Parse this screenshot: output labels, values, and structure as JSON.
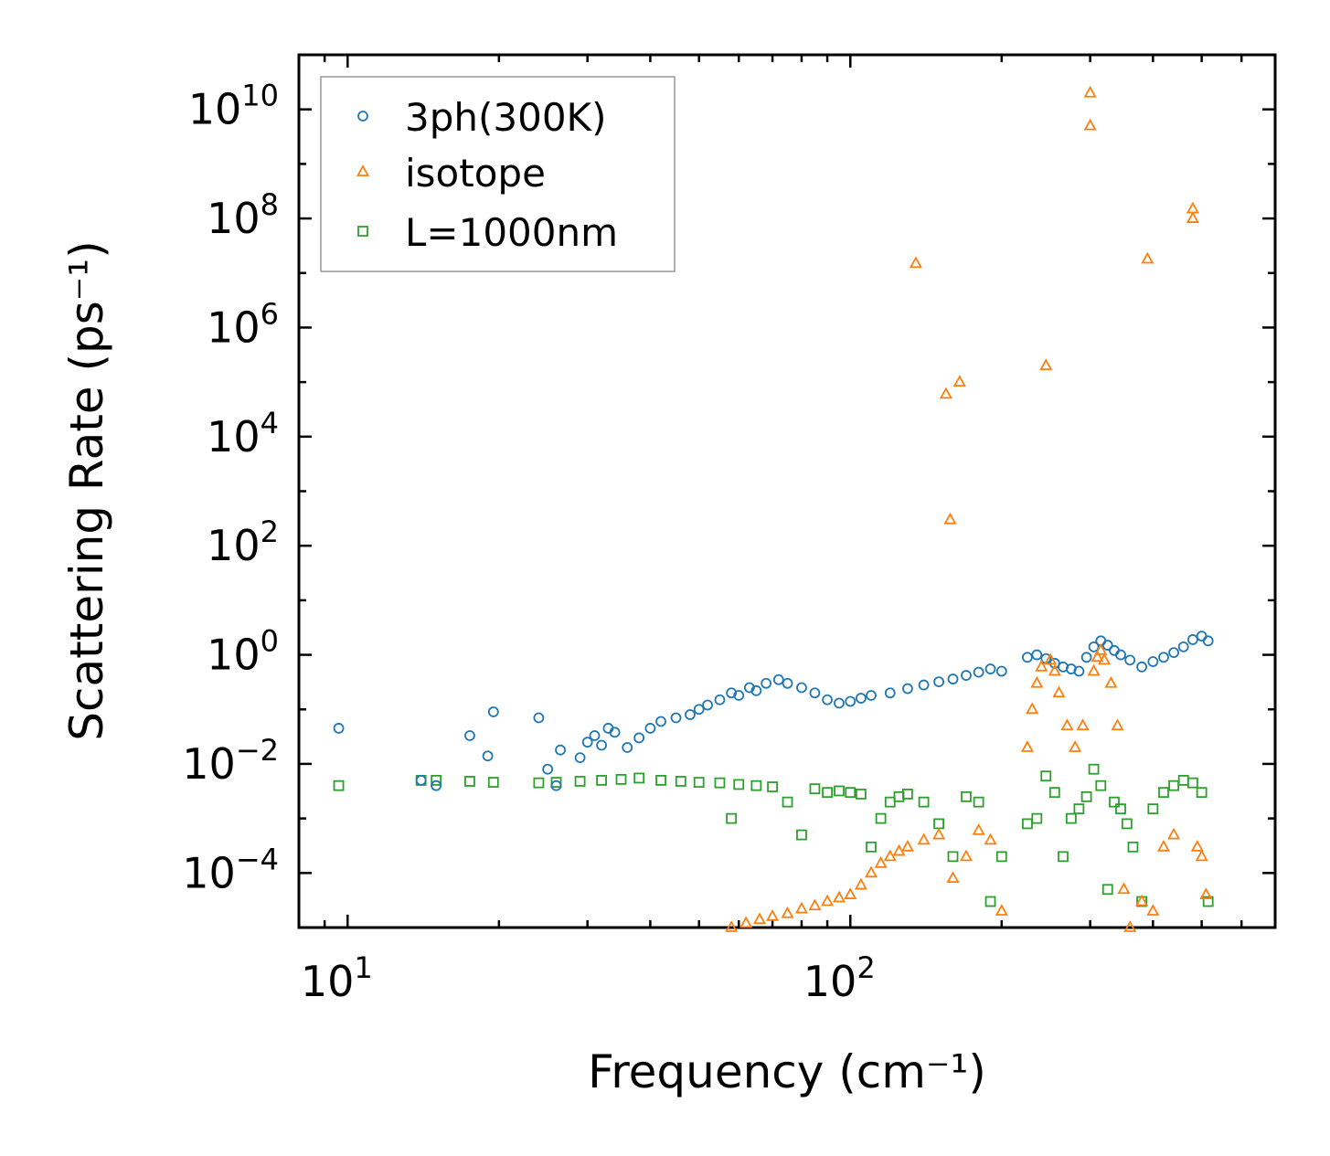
{
  "chart_data": {
    "type": "scatter",
    "xscale": "log",
    "yscale": "log",
    "xlim": [
      8,
      700
    ],
    "ylim": [
      1e-05,
      100000000000.0
    ],
    "xlabel": "Frequency (cm⁻¹)",
    "ylabel": "Scattering Rate (ps⁻¹)",
    "x_ticks": [
      {
        "base": "10",
        "exp": "1",
        "value": 10
      },
      {
        "base": "10",
        "exp": "2",
        "value": 100
      }
    ],
    "y_ticks": [
      {
        "base": "10",
        "exp": "10",
        "value": 10000000000.0
      },
      {
        "base": "10",
        "exp": "8",
        "value": 100000000.0
      },
      {
        "base": "10",
        "exp": "6",
        "value": 1000000.0
      },
      {
        "base": "10",
        "exp": "4",
        "value": 10000.0
      },
      {
        "base": "10",
        "exp": "2",
        "value": 100.0
      },
      {
        "base": "10",
        "exp": "0",
        "value": 1
      },
      {
        "base": "10",
        "exp": "−2",
        "value": 0.01
      },
      {
        "base": "10",
        "exp": "−4",
        "value": 0.0001
      }
    ],
    "legend_position": "top-left",
    "series": [
      {
        "name": "3ph(300K)",
        "marker": "circle",
        "color": "#1f77b4",
        "points": [
          [
            9.6,
            0.045
          ],
          [
            14,
            0.005
          ],
          [
            15,
            0.004
          ],
          [
            17.5,
            0.033
          ],
          [
            19,
            0.014
          ],
          [
            19.5,
            0.09
          ],
          [
            24,
            0.07
          ],
          [
            25,
            0.008
          ],
          [
            26,
            0.004
          ],
          [
            26.5,
            0.018
          ],
          [
            29,
            0.013
          ],
          [
            30,
            0.025
          ],
          [
            31,
            0.033
          ],
          [
            32,
            0.022
          ],
          [
            33,
            0.045
          ],
          [
            34,
            0.038
          ],
          [
            36,
            0.02
          ],
          [
            38,
            0.03
          ],
          [
            40,
            0.045
          ],
          [
            42,
            0.06
          ],
          [
            45,
            0.07
          ],
          [
            48,
            0.08
          ],
          [
            50,
            0.1
          ],
          [
            52,
            0.12
          ],
          [
            55,
            0.15
          ],
          [
            58,
            0.2
          ],
          [
            60,
            0.18
          ],
          [
            63,
            0.25
          ],
          [
            65,
            0.22
          ],
          [
            68,
            0.3
          ],
          [
            72,
            0.35
          ],
          [
            75,
            0.3
          ],
          [
            80,
            0.25
          ],
          [
            85,
            0.2
          ],
          [
            90,
            0.15
          ],
          [
            95,
            0.13
          ],
          [
            100,
            0.14
          ],
          [
            105,
            0.16
          ],
          [
            110,
            0.18
          ],
          [
            120,
            0.2
          ],
          [
            130,
            0.24
          ],
          [
            140,
            0.28
          ],
          [
            150,
            0.32
          ],
          [
            160,
            0.36
          ],
          [
            170,
            0.42
          ],
          [
            180,
            0.48
          ],
          [
            190,
            0.55
          ],
          [
            200,
            0.5
          ],
          [
            225,
            0.9
          ],
          [
            235,
            1.0
          ],
          [
            245,
            0.85
          ],
          [
            255,
            0.7
          ],
          [
            265,
            0.6
          ],
          [
            275,
            0.55
          ],
          [
            285,
            0.5
          ],
          [
            295,
            0.9
          ],
          [
            305,
            1.4
          ],
          [
            315,
            1.8
          ],
          [
            325,
            1.5
          ],
          [
            335,
            1.2
          ],
          [
            345,
            1.0
          ],
          [
            360,
            0.8
          ],
          [
            380,
            0.6
          ],
          [
            400,
            0.75
          ],
          [
            420,
            0.9
          ],
          [
            440,
            1.1
          ],
          [
            460,
            1.4
          ],
          [
            480,
            1.9
          ],
          [
            500,
            2.2
          ],
          [
            515,
            1.8
          ]
        ]
      },
      {
        "name": "isotope",
        "marker": "triangle",
        "color": "#ff7f0e",
        "points": [
          [
            58,
            1e-05
          ],
          [
            62,
            1.2e-05
          ],
          [
            66,
            1.4e-05
          ],
          [
            70,
            1.6e-05
          ],
          [
            75,
            1.8e-05
          ],
          [
            80,
            2.2e-05
          ],
          [
            85,
            2.5e-05
          ],
          [
            90,
            3e-05
          ],
          [
            95,
            3.5e-05
          ],
          [
            100,
            4e-05
          ],
          [
            105,
            6e-05
          ],
          [
            110,
            0.0001
          ],
          [
            115,
            0.00015
          ],
          [
            120,
            0.0002
          ],
          [
            125,
            0.00025
          ],
          [
            130,
            0.0003
          ],
          [
            135,
            15000000
          ],
          [
            140,
            0.0004
          ],
          [
            150,
            0.0005
          ],
          [
            155,
            60000
          ],
          [
            158,
            300
          ],
          [
            160,
            8e-05
          ],
          [
            165,
            100000
          ],
          [
            170,
            0.0002
          ],
          [
            180,
            0.0006
          ],
          [
            190,
            0.0004
          ],
          [
            200,
            2e-05
          ],
          [
            225,
            0.02
          ],
          [
            230,
            0.1
          ],
          [
            235,
            0.3
          ],
          [
            240,
            0.6
          ],
          [
            245,
            200000
          ],
          [
            250,
            0.8
          ],
          [
            255,
            0.5
          ],
          [
            260,
            0.2
          ],
          [
            270,
            0.05
          ],
          [
            280,
            0.02
          ],
          [
            290,
            0.05
          ],
          [
            300,
            20000000000
          ],
          [
            300,
            5000000000
          ],
          [
            305,
            0.5
          ],
          [
            310,
            0.9
          ],
          [
            315,
            1.2
          ],
          [
            320,
            0.8
          ],
          [
            330,
            0.3
          ],
          [
            340,
            0.05
          ],
          [
            350,
            5e-05
          ],
          [
            360,
            1e-05
          ],
          [
            380,
            3e-05
          ],
          [
            390,
            18000000
          ],
          [
            400,
            2e-05
          ],
          [
            420,
            0.0003
          ],
          [
            440,
            0.0005
          ],
          [
            480,
            150000000
          ],
          [
            480,
            100000000
          ],
          [
            490,
            0.0003
          ],
          [
            500,
            0.0002
          ],
          [
            510,
            4e-05
          ]
        ]
      },
      {
        "name": "L=1000nm",
        "marker": "square",
        "color": "#2ca02c",
        "points": [
          [
            9.6,
            0.004
          ],
          [
            14,
            0.005
          ],
          [
            15,
            0.005
          ],
          [
            17.5,
            0.0048
          ],
          [
            19.5,
            0.0046
          ],
          [
            24,
            0.0045
          ],
          [
            26,
            0.0046
          ],
          [
            29,
            0.0048
          ],
          [
            32,
            0.005
          ],
          [
            35,
            0.0052
          ],
          [
            38,
            0.0055
          ],
          [
            42,
            0.005
          ],
          [
            46,
            0.0048
          ],
          [
            50,
            0.0046
          ],
          [
            55,
            0.0045
          ],
          [
            58,
            0.001
          ],
          [
            60,
            0.0042
          ],
          [
            65,
            0.004
          ],
          [
            70,
            0.0038
          ],
          [
            75,
            0.002
          ],
          [
            80,
            0.0005
          ],
          [
            85,
            0.0035
          ],
          [
            90,
            0.003
          ],
          [
            95,
            0.0032
          ],
          [
            100,
            0.003
          ],
          [
            105,
            0.0028
          ],
          [
            110,
            0.0003
          ],
          [
            115,
            0.001
          ],
          [
            120,
            0.002
          ],
          [
            125,
            0.0025
          ],
          [
            130,
            0.0028
          ],
          [
            140,
            0.002
          ],
          [
            150,
            0.0008
          ],
          [
            160,
            0.0002
          ],
          [
            170,
            0.0025
          ],
          [
            180,
            0.002
          ],
          [
            190,
            3e-05
          ],
          [
            200,
            0.0002
          ],
          [
            225,
            0.0008
          ],
          [
            235,
            0.001
          ],
          [
            245,
            0.006
          ],
          [
            255,
            0.003
          ],
          [
            265,
            0.0002
          ],
          [
            275,
            0.001
          ],
          [
            285,
            0.0015
          ],
          [
            295,
            0.0025
          ],
          [
            305,
            0.008
          ],
          [
            315,
            0.004
          ],
          [
            325,
            5e-05
          ],
          [
            335,
            0.002
          ],
          [
            345,
            0.0015
          ],
          [
            355,
            0.0008
          ],
          [
            365,
            0.0003
          ],
          [
            380,
            3e-05
          ],
          [
            400,
            0.0015
          ],
          [
            420,
            0.003
          ],
          [
            440,
            0.004
          ],
          [
            460,
            0.005
          ],
          [
            480,
            0.0045
          ],
          [
            500,
            0.003
          ],
          [
            515,
            3e-05
          ]
        ]
      }
    ]
  }
}
